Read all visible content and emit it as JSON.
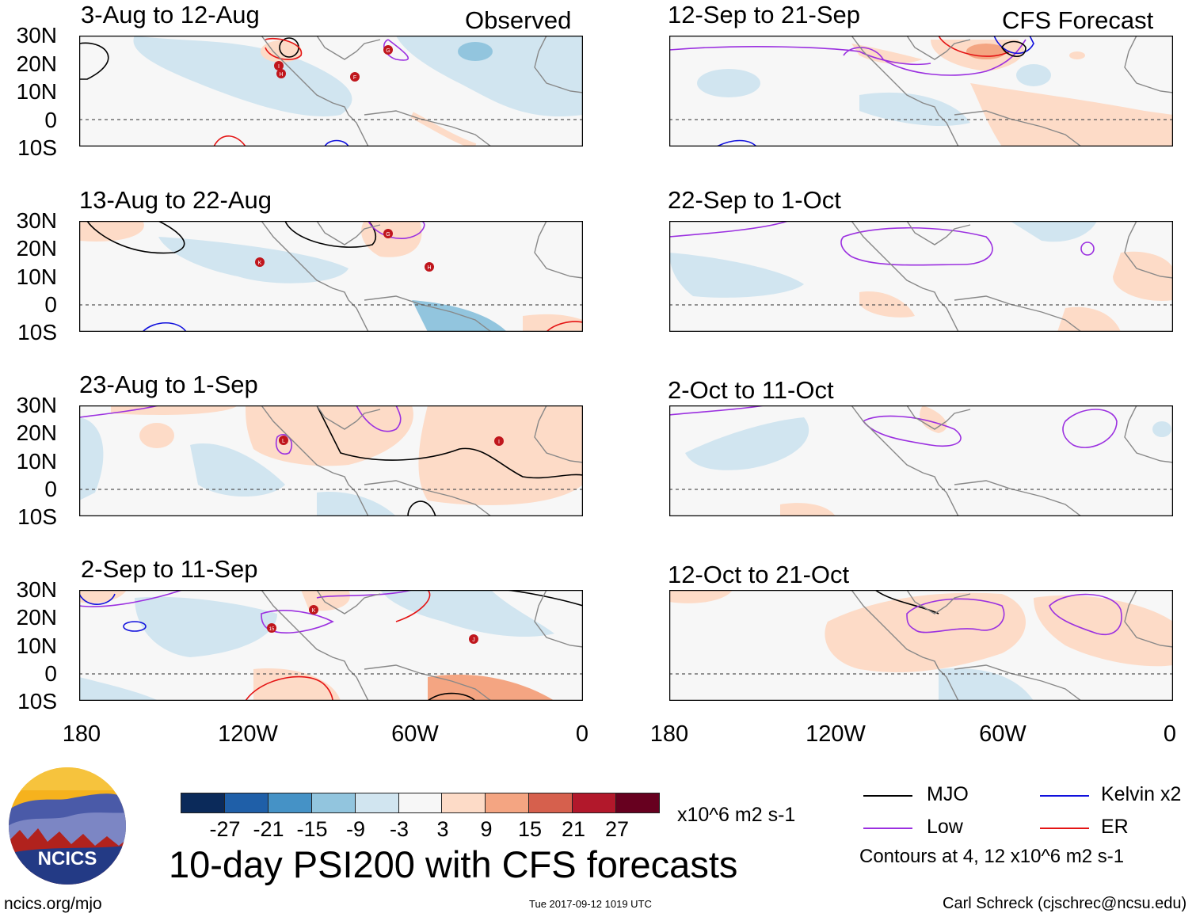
{
  "panels": [
    {
      "title": "3-Aug to 12-Aug",
      "label": "Observed"
    },
    {
      "title": "13-Aug to 22-Aug",
      "label": ""
    },
    {
      "title": "23-Aug to 1-Sep",
      "label": ""
    },
    {
      "title": "2-Sep to 11-Sep",
      "label": ""
    },
    {
      "title": "12-Sep to 21-Sep",
      "label": "CFS Forecast"
    },
    {
      "title": "22-Sep to 1-Oct",
      "label": ""
    },
    {
      "title": "2-Oct to 11-Oct",
      "label": ""
    },
    {
      "title": "12-Oct to 21-Oct",
      "label": ""
    }
  ],
  "lat_labels": [
    "30N",
    "20N",
    "10N",
    "0",
    "10S"
  ],
  "lon_labels": [
    "180",
    "120W",
    "60W",
    "0"
  ],
  "colorbar": {
    "ticks": [
      "-27",
      "-21",
      "-15",
      "-9",
      "-3",
      "3",
      "9",
      "15",
      "21",
      "27"
    ],
    "colors": [
      "#0b2a5a",
      "#1f5fa8",
      "#4592c6",
      "#92c5de",
      "#d1e5f0",
      "#f7f7f7",
      "#fddbc7",
      "#f4a582",
      "#d6604d",
      "#b2182b",
      "#67001f"
    ],
    "units": "x10^6 m2 s-1"
  },
  "main_title": "10-day PSI200 with CFS forecasts",
  "legend": {
    "items": [
      {
        "label": "MJO",
        "color": "#000000"
      },
      {
        "label": "Kelvin x2",
        "color": "#1010dd"
      },
      {
        "label": "Low",
        "color": "#9b30e0"
      },
      {
        "label": "ER",
        "color": "#e41414"
      }
    ],
    "contours_note": "Contours at 4, 12 x10^6 m2 s-1"
  },
  "footer": {
    "url": "ncics.org/mjo",
    "timestamp": "Tue 2017-09-12 1019 UTC",
    "author": "Carl Schreck (cjschrec@ncsu.edu)"
  },
  "logo": {
    "text": "NCICS"
  },
  "storms": {
    "p1": [
      "I",
      "H",
      "G",
      "F"
    ],
    "p2": [
      "G",
      "K",
      "H"
    ],
    "p3": [
      "L",
      "I"
    ],
    "p4": [
      "K",
      "15",
      "J"
    ]
  }
}
